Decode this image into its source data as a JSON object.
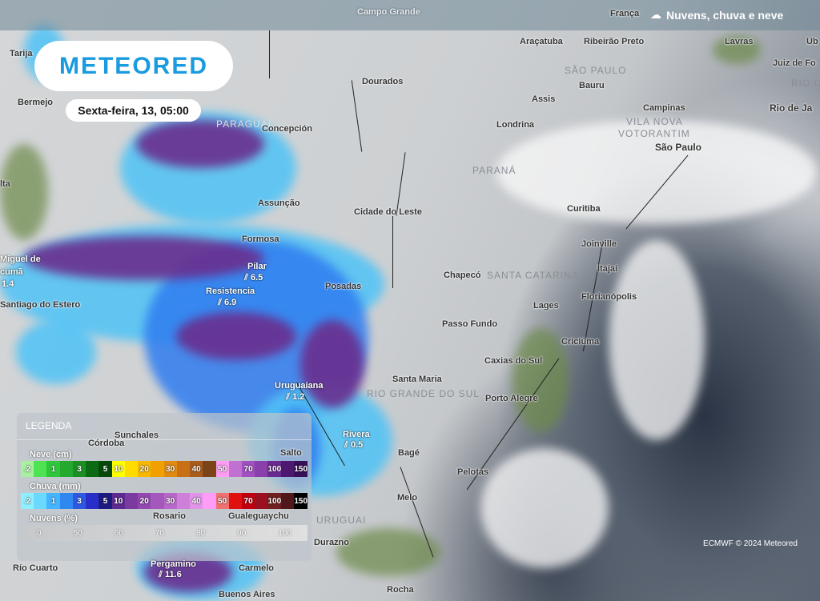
{
  "header": {
    "product_title": "Nuvens, chuva e neve",
    "product_icon": "cloud-rain-icon"
  },
  "logo": {
    "text": "METEORED"
  },
  "datetime": "Sexta-feira, 13, 05:00",
  "cities": [
    "Campo Grande",
    "Tarija",
    "Araçatuba",
    "Ribeirão Preto",
    "Lavras",
    "Ub",
    "Juiz de Fo",
    "Dourados",
    "Bauru",
    "Bermejo",
    "Assis",
    "Campinas",
    "Rio de Ja",
    "Concepción",
    "Londrina",
    "São Paulo",
    "lta",
    "Assunção",
    "Cidade do Leste",
    "Curitiba",
    "Formosa",
    "Joinville",
    "Miguel de",
    "cumã",
    "Pilar",
    "Itajaí",
    "Chapecó",
    "Posadas",
    "Resistencia",
    "Florianópolis",
    "Santiago do Estero",
    "Lages",
    "Passo Fundo",
    "Criciúma",
    "Caxias do Sul",
    "Santa Maria",
    "Uruguaiana",
    "Porto Alegre",
    "Rivera",
    "Sunchales",
    "Salto",
    "Bagé",
    "Pelotas",
    "Melo",
    "Rosario",
    "Gualeguaychu",
    "Durazno",
    "Pergamino",
    "Carmelo",
    "Buenos Aires",
    "Rocha",
    "Río Cuarto",
    "Córdoba",
    "França"
  ],
  "regions": [
    "SÃO PAULO",
    "RIO DE",
    "PARAGUAI",
    "VILA NOVA",
    "VOTORANTIM",
    "PARANÁ",
    "SANTA CATARINA",
    "RIO GRANDE DO SUL",
    "URUGUAI"
  ],
  "precip_values": [
    {
      "city": "Pilar",
      "value": "6.5"
    },
    {
      "city": "Resistencia",
      "value": "6.9"
    },
    {
      "city": "Uruguaiana",
      "value": "1.2"
    },
    {
      "city": "Rivera",
      "value": "0.5"
    },
    {
      "city": "Pergamino",
      "value": "11.6"
    },
    {
      "city": "cumã",
      "value": "1.4"
    }
  ],
  "legend": {
    "title": "LEGENDA",
    "snow": {
      "label": "Neve (cm)",
      "steps": [
        ".2",
        "",
        "1",
        "",
        "3",
        "",
        "5",
        "10",
        "",
        "20",
        "",
        "30",
        "",
        "40",
        "",
        "50",
        "",
        "70",
        "",
        "100",
        "",
        "150"
      ],
      "colors": [
        "#a6f0a0",
        "#4de352",
        "#2fc63a",
        "#24a82e",
        "#1c8f24",
        "#0b6b12",
        "#064a0a",
        "#ffff00",
        "#ffdc00",
        "#f6b800",
        "#f0a000",
        "#e08a10",
        "#c87018",
        "#a85c1c",
        "#7a4418",
        "#ff9cf4",
        "#c070d0",
        "#a050c0",
        "#8a40aa",
        "#6a2a90",
        "#4c1870",
        "#38105a"
      ]
    },
    "rain": {
      "label": "Chuva (mm)",
      "steps": [
        ".2",
        "",
        "1",
        "",
        "3",
        "",
        "5",
        "10",
        "",
        "20",
        "",
        "30",
        "",
        "40",
        "",
        "50",
        "",
        "70",
        "",
        "100",
        "",
        "150"
      ],
      "colors": [
        "#8ef0ff",
        "#6ad8ff",
        "#44b4ff",
        "#2f88f0",
        "#2e58e0",
        "#2a2ec8",
        "#1c1c80",
        "#5c2a90",
        "#7a3aa0",
        "#9248b0",
        "#a458bc",
        "#b868c8",
        "#cc80d8",
        "#e094e8",
        "#ff9cf8",
        "#f07070",
        "#e01010",
        "#c00010",
        "#9a1020",
        "#702020",
        "#501818",
        "#000000"
      ]
    },
    "clouds": {
      "label": "Nuvens (%)",
      "steps": [
        "0",
        "50",
        "60",
        "70",
        "80",
        "90",
        "100"
      ]
    }
  },
  "credit": "ECMWF © 2024 Meteored"
}
